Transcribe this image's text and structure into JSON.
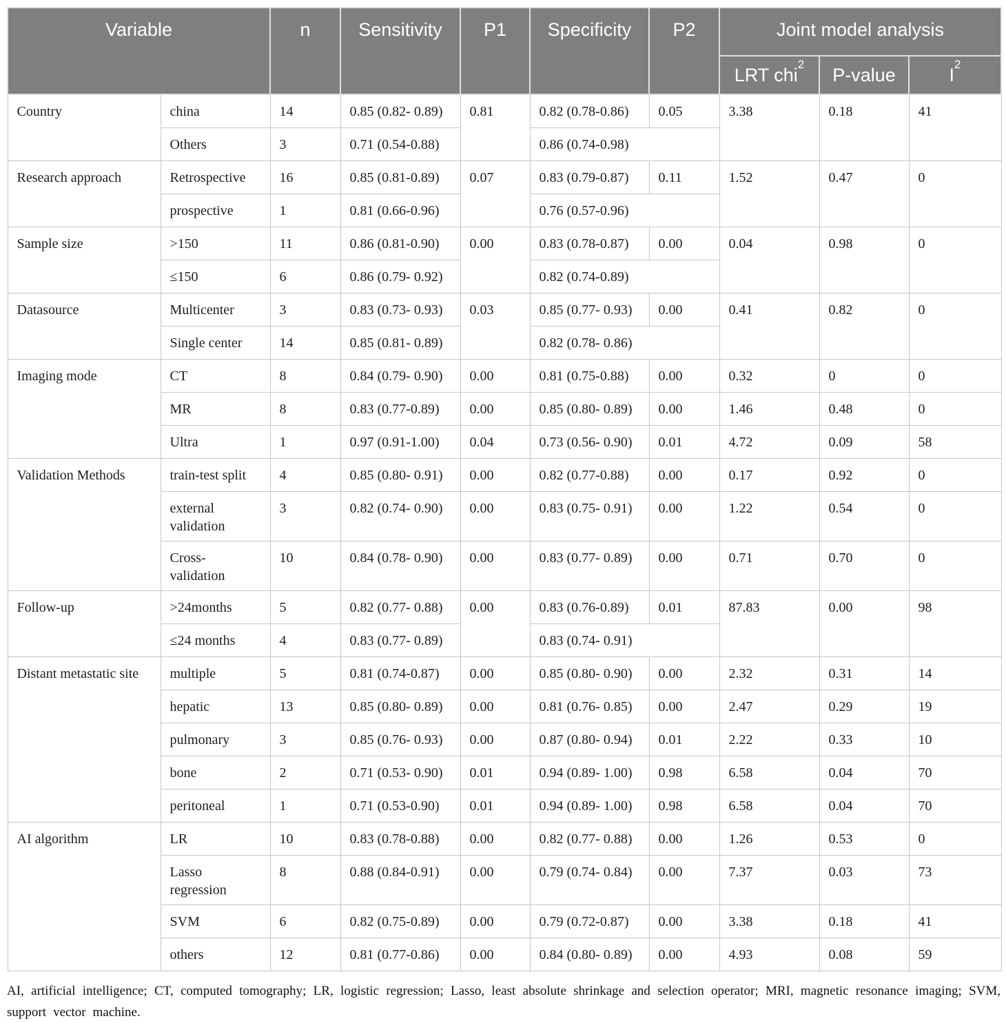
{
  "colors": {
    "header_bg": "#7f7f7f",
    "header_text": "#ffffff",
    "grid_line": "#c7c7c7",
    "body_text": "#1e1e1e"
  },
  "table": {
    "header": {
      "variable": "Variable",
      "n": "n",
      "sensitivity": "Sensitivity",
      "p1": "P1",
      "specificity": "Specificity",
      "p2": "P2",
      "joint": "Joint model analysis",
      "lrt_label": "LRT chi",
      "i2_label": "I",
      "sup2": "2",
      "pvalue": "P-value"
    },
    "groups": [
      {
        "variable": "Country",
        "shared_stats": true,
        "p1": "0.81",
        "p2": "0.05",
        "lrt": "3.38",
        "pvalue": "0.18",
        "i2": "41",
        "rows": [
          {
            "label": "china",
            "n": "14",
            "sensitivity": "0.85 (0.82- 0.89)",
            "specificity": "0.82 (0.78-0.86)"
          },
          {
            "label": "Others",
            "n": "3",
            "sensitivity": "0.71 (0.54-0.88)",
            "specificity": "0.86 (0.74-0.98)"
          }
        ]
      },
      {
        "variable": "Research approach",
        "shared_stats": true,
        "p1": "0.07",
        "p2": "0.11",
        "lrt": "1.52",
        "pvalue": "0.47",
        "i2": "0",
        "rows": [
          {
            "label": "Retrospective",
            "n": "16",
            "sensitivity": "0.85 (0.81-0.89)",
            "specificity": "0.83 (0.79-0.87)"
          },
          {
            "label": "prospective",
            "n": "1",
            "sensitivity": "0.81 (0.66-0.96)",
            "specificity": "0.76 (0.57-0.96)"
          }
        ]
      },
      {
        "variable": "Sample size",
        "shared_stats": true,
        "p1": "0.00",
        "p2": "0.00",
        "lrt": "0.04",
        "pvalue": "0.98",
        "i2": "0",
        "rows": [
          {
            "label": ">150",
            "n": "11",
            "sensitivity": "0.86 (0.81-0.90)",
            "specificity": "0.83 (0.78-0.87)"
          },
          {
            "label": "≤150",
            "n": "6",
            "sensitivity": "0.86 (0.79- 0.92)",
            "specificity": "0.82 (0.74-0.89)"
          }
        ]
      },
      {
        "variable": "Datasource",
        "shared_stats": true,
        "p1": "0.03",
        "p2": "0.00",
        "lrt": "0.41",
        "pvalue": "0.82",
        "i2": "0",
        "rows": [
          {
            "label": "Multicenter",
            "n": "3",
            "sensitivity": "0.83 (0.73- 0.93)",
            "specificity": "0.85 (0.77- 0.93)"
          },
          {
            "label": "Single center",
            "n": "14",
            "sensitivity": "0.85 (0.81- 0.89)",
            "specificity": "0.82 (0.78- 0.86)"
          }
        ]
      },
      {
        "variable": "Imaging mode",
        "shared_stats": false,
        "rows": [
          {
            "label": "CT",
            "n": "8",
            "sensitivity": "0.84 (0.79- 0.90)",
            "p1": "0.00",
            "specificity": "0.81 (0.75-0.88)",
            "p2": "0.00",
            "lrt": "0.32",
            "pvalue": "0",
            "i2": "0"
          },
          {
            "label": "MR",
            "n": "8",
            "sensitivity": "0.83 (0.77-0.89)",
            "p1": "0.00",
            "specificity": "0.85 (0.80- 0.89)",
            "p2": "0.00",
            "lrt": "1.46",
            "pvalue": "0.48",
            "i2": "0"
          },
          {
            "label": "Ultra",
            "n": "1",
            "sensitivity": "0.97 (0.91-1.00)",
            "p1": "0.04",
            "specificity": "0.73 (0.56- 0.90)",
            "p2": "0.01",
            "lrt": "4.72",
            "pvalue": "0.09",
            "i2": "58"
          }
        ]
      },
      {
        "variable": "Validation Methods",
        "shared_stats": false,
        "rows": [
          {
            "label": "train-test split",
            "n": "4",
            "sensitivity": "0.85 (0.80- 0.91)",
            "p1": "0.00",
            "specificity": "0.82 (0.77-0.88)",
            "p2": "0.00",
            "lrt": "0.17",
            "pvalue": "0.92",
            "i2": "0"
          },
          {
            "label": "external\nvalidation",
            "n": "3",
            "sensitivity": "0.82 (0.74- 0.90)",
            "p1": "0.00",
            "specificity": "0.83 (0.75- 0.91)",
            "p2": "0.00",
            "lrt": "1.22",
            "pvalue": "0.54",
            "i2": "0"
          },
          {
            "label": "Cross-\nvalidation",
            "n": "10",
            "sensitivity": "0.84 (0.78- 0.90)",
            "p1": "0.00",
            "specificity": "0.83 (0.77- 0.89)",
            "p2": "0.00",
            "lrt": "0.71",
            "pvalue": "0.70",
            "i2": "0"
          }
        ]
      },
      {
        "variable": "Follow-up",
        "shared_stats": true,
        "p1": "0.00",
        "p2": "0.01",
        "lrt": "87.83",
        "pvalue": "0.00",
        "i2": "98",
        "rows": [
          {
            "label": ">24months",
            "n": "5",
            "sensitivity": "0.82 (0.77- 0.88)",
            "specificity": "0.83 (0.76-0.89)"
          },
          {
            "label": "≤24 months",
            "n": "4",
            "sensitivity": "0.83 (0.77- 0.89)",
            "specificity": "0.83 (0.74- 0.91)"
          }
        ]
      },
      {
        "variable": "Distant metastatic site",
        "shared_stats": false,
        "rows": [
          {
            "label": "multiple",
            "n": "5",
            "sensitivity": "0.81 (0.74-0.87)",
            "p1": "0.00",
            "specificity": "0.85 (0.80- 0.90)",
            "p2": "0.00",
            "lrt": "2.32",
            "pvalue": "0.31",
            "i2": "14"
          },
          {
            "label": "hepatic",
            "n": "13",
            "sensitivity": "0.85 (0.80- 0.89)",
            "p1": "0.00",
            "specificity": "0.81 (0.76- 0.85)",
            "p2": "0.00",
            "lrt": "2.47",
            "pvalue": "0.29",
            "i2": "19"
          },
          {
            "label": "pulmonary",
            "n": "3",
            "sensitivity": "0.85 (0.76- 0.93)",
            "p1": "0.00",
            "specificity": "0.87 (0.80- 0.94)",
            "p2": "0.01",
            "lrt": "2.22",
            "pvalue": "0.33",
            "i2": "10"
          },
          {
            "label": "bone",
            "n": "2",
            "sensitivity": "0.71 (0.53- 0.90)",
            "p1": "0.01",
            "specificity": "0.94 (0.89- 1.00)",
            "p2": "0.98",
            "lrt": "6.58",
            "pvalue": "0.04",
            "i2": "70"
          },
          {
            "label": "peritoneal",
            "n": "1",
            "sensitivity": "0.71 (0.53-0.90)",
            "p1": "0.01",
            "specificity": "0.94 (0.89- 1.00)",
            "p2": "0.98",
            "lrt": "6.58",
            "pvalue": "0.04",
            "i2": "70"
          }
        ]
      },
      {
        "variable": "AI algorithm",
        "shared_stats": false,
        "rows": [
          {
            "label": "LR",
            "n": "10",
            "sensitivity": "0.83 (0.78-0.88)",
            "p1": "0.00",
            "specificity": "0.82 (0.77- 0.88)",
            "p2": "0.00",
            "lrt": "1.26",
            "pvalue": "0.53",
            "i2": "0"
          },
          {
            "label": "Lasso\nregression",
            "n": "8",
            "sensitivity": "0.88 (0.84-0.91)",
            "p1": "0.00",
            "specificity": "0.79 (0.74- 0.84)",
            "p2": "0.00",
            "lrt": "7.37",
            "pvalue": "0.03",
            "i2": "73"
          },
          {
            "label": "SVM",
            "n": "6",
            "sensitivity": "0.82 (0.75-0.89)",
            "p1": "0.00",
            "specificity": "0.79 (0.72-0.87)",
            "p2": "0.00",
            "lrt": "3.38",
            "pvalue": "0.18",
            "i2": "41"
          },
          {
            "label": "others",
            "n": "12",
            "sensitivity": "0.81 (0.77-0.86)",
            "p1": "0.00",
            "specificity": "0.84 (0.80- 0.89)",
            "p2": "0.00",
            "lrt": "4.93",
            "pvalue": "0.08",
            "i2": "59"
          }
        ]
      }
    ]
  },
  "footnote": "AI, artificial intelligence; CT, computed tomography; LR, logistic regression; Lasso, least absolute shrinkage and selection operator; MRI, magnetic resonance imaging; SVM, support vector machine."
}
